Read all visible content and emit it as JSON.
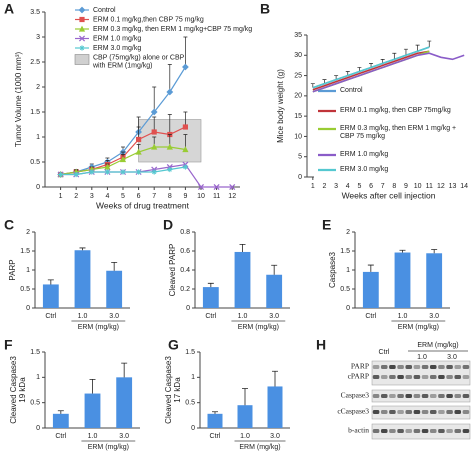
{
  "chart_data": [
    {
      "type": "line",
      "label": "A",
      "ylabel": "Tumor Volume (1000 mm³)",
      "xlabel": "Weeks of drug treatment",
      "x": [
        1,
        2,
        3,
        4,
        5,
        6,
        7,
        8,
        9,
        10,
        11,
        12
      ],
      "xlim": [
        0,
        12.5
      ],
      "xticks": [
        1,
        2,
        3,
        4,
        5,
        6,
        7,
        8,
        9,
        10,
        11,
        12
      ],
      "ylim": [
        0,
        3.5
      ],
      "yticks": [
        0,
        0.5,
        1,
        1.5,
        2,
        2.5,
        3,
        3.5
      ],
      "series": [
        {
          "name": "Control",
          "color": "#5b9bd5",
          "marker": "diamond",
          "values": [
            0.25,
            0.3,
            0.4,
            0.5,
            0.7,
            1.1,
            1.5,
            1.9,
            2.4,
            null,
            null,
            null
          ],
          "errors": [
            0.03,
            0.05,
            0.06,
            0.08,
            0.1,
            0.3,
            0.5,
            0.55,
            0.6,
            null,
            null,
            null
          ]
        },
        {
          "name": "ERM 0.1 mg/kg,then CBP 75 mg/kg",
          "color": "#e0504f",
          "marker": "square",
          "values": [
            0.25,
            0.3,
            0.35,
            0.45,
            0.6,
            0.95,
            1.1,
            1.05,
            1.2,
            null,
            null,
            null
          ],
          "errors": [
            0.03,
            0.04,
            0.05,
            0.08,
            0.1,
            0.25,
            0.3,
            0.4,
            0.3,
            null,
            null,
            null
          ]
        },
        {
          "name": "ERM 0.3 mg/kg, then ERM 1 mg/kg+CBP 75 mg/kg",
          "color": "#99cc33",
          "marker": "triangle",
          "values": [
            0.25,
            0.3,
            0.35,
            0.4,
            0.55,
            0.7,
            0.8,
            0.8,
            0.75,
            null,
            null,
            null
          ],
          "errors": [
            0.03,
            0.04,
            0.05,
            0.06,
            0.1,
            0.15,
            0.2,
            0.25,
            0.3,
            null,
            null,
            null
          ]
        },
        {
          "name": "ERM 1.0 mg/kg",
          "color": "#9966cc",
          "marker": "x",
          "values": [
            0.25,
            0.25,
            0.3,
            0.3,
            0.3,
            0.3,
            0.35,
            0.4,
            0.45,
            0,
            0,
            0
          ]
        },
        {
          "name": "ERM 3.0 mg/kg",
          "color": "#55c8d0",
          "marker": "star",
          "values": [
            0.25,
            0.25,
            0.3,
            0.3,
            0.3,
            0.3,
            0.3,
            0.35,
            0.4,
            null,
            null,
            null
          ]
        }
      ],
      "shaded": {
        "label": [
          "CBP (75mg/kg) alone or CBP",
          "with ERM (1mg/kg)"
        ],
        "color": "#d0d0d0",
        "x": [
          6,
          10
        ],
        "y": [
          0.5,
          1.35
        ]
      }
    },
    {
      "type": "line",
      "label": "B",
      "ylabel": "Mice body weight (g)",
      "xlabel": "Weeks after cell injection",
      "x": [
        1,
        2,
        3,
        4,
        5,
        6,
        7,
        8,
        9,
        10,
        11,
        12,
        13,
        14
      ],
      "xlim": [
        0.5,
        14.5
      ],
      "xticks": [
        1,
        2,
        3,
        4,
        5,
        6,
        7,
        8,
        9,
        10,
        11,
        12,
        13,
        14
      ],
      "ylim": [
        0,
        35
      ],
      "yticks": [
        0,
        5,
        10,
        15,
        20,
        25,
        30,
        35
      ],
      "series": [
        {
          "name": "Control",
          "color": "#5b9bd5",
          "values": [
            22,
            23,
            24,
            25,
            26,
            27,
            28,
            29,
            30,
            31,
            32,
            null,
            null,
            null
          ],
          "errors": [
            1,
            1,
            1,
            1,
            1,
            1,
            1,
            1.5,
            1.5,
            1.5,
            1.5,
            null,
            null,
            null
          ]
        },
        {
          "name": "ERM 0.1 mg/kg, then CBP 75mg/kg",
          "color": "#c0343a",
          "values": [
            21.5,
            22.5,
            23.5,
            24.5,
            25.5,
            26.5,
            27.5,
            28.5,
            29.5,
            30.5,
            31,
            null,
            null,
            null
          ]
        },
        {
          "name": "ERM 0.3 mg/kg, then ERM 1 mg/kg + CBP 75 mg/kg",
          "color": "#99cc33",
          "values": [
            21,
            22,
            23,
            24,
            25,
            26,
            27,
            28,
            29,
            30,
            31,
            null,
            null,
            null
          ]
        },
        {
          "name": "ERM 1.0 mg/kg",
          "color": "#8a5cc8",
          "values": [
            21,
            22,
            23,
            24,
            25,
            26,
            27,
            28,
            29,
            30,
            30.5,
            29.5,
            29,
            30
          ]
        },
        {
          "name": "ERM 3.0 mg/kg",
          "color": "#55c8d0",
          "values": [
            22,
            23,
            24,
            25,
            26,
            27,
            28,
            29,
            30,
            31,
            32,
            null,
            null,
            null
          ]
        }
      ]
    },
    {
      "type": "bar",
      "label": "C",
      "ylabel": "PARP",
      "xlabel": "ERM (mg/kg)",
      "categories": [
        "Ctrl",
        "1.0",
        "3.0"
      ],
      "values": [
        0.62,
        1.52,
        0.98
      ],
      "errors": [
        0.12,
        0.06,
        0.22
      ],
      "color": "#4a90e2",
      "ylim": [
        0,
        2
      ],
      "yticks": [
        0,
        0.5,
        1,
        1.5,
        2
      ]
    },
    {
      "type": "bar",
      "label": "D",
      "ylabel": "Cleaved PARP",
      "xlabel": "ERM (mg/kg)",
      "categories": [
        "Ctrl",
        "1.0",
        "3.0"
      ],
      "values": [
        0.22,
        0.59,
        0.35
      ],
      "errors": [
        0.04,
        0.08,
        0.1
      ],
      "color": "#4a90e2",
      "ylim": [
        0,
        0.8
      ],
      "yticks": [
        0,
        0.2,
        0.4,
        0.6,
        0.8
      ]
    },
    {
      "type": "bar",
      "label": "E",
      "ylabel": "Caspase3",
      "xlabel": "ERM (mg/kg)",
      "categories": [
        "Ctrl",
        "1.0",
        "3.0"
      ],
      "values": [
        0.95,
        1.46,
        1.44
      ],
      "errors": [
        0.18,
        0.06,
        0.1
      ],
      "color": "#4a90e2",
      "ylim": [
        0,
        2
      ],
      "yticks": [
        0,
        0.5,
        1,
        1.5,
        2
      ]
    },
    {
      "type": "bar",
      "label": "F",
      "ylabel": [
        "Cleaved Caspase3",
        "19 kDa"
      ],
      "xlabel": "ERM (mg/kg)",
      "categories": [
        "Ctrl",
        "1.0",
        "3.0"
      ],
      "values": [
        0.28,
        0.68,
        1.0
      ],
      "errors": [
        0.06,
        0.28,
        0.28
      ],
      "color": "#4a90e2",
      "ylim": [
        0,
        1.5
      ],
      "yticks": [
        0,
        0.5,
        1,
        1.5
      ]
    },
    {
      "type": "bar",
      "label": "G",
      "ylabel": [
        "Cleaved Caspase3",
        "17 kDa"
      ],
      "xlabel": "ERM (mg/kg)",
      "categories": [
        "Ctrl",
        "1.0",
        "3.0"
      ],
      "values": [
        0.28,
        0.45,
        0.82
      ],
      "errors": [
        0.04,
        0.33,
        0.3
      ],
      "color": "#4a90e2",
      "ylim": [
        0,
        1.5
      ],
      "yticks": [
        0,
        0.5,
        1,
        1.5
      ]
    },
    {
      "type": "blot",
      "label": "H",
      "lanes": [
        "Ctrl",
        "1.0",
        "3.0"
      ],
      "xlabel": "ERM (mg/kg)",
      "rows": [
        "PARP",
        "cPARP",
        "Caspase3",
        "cCaspase3",
        "b-actin"
      ]
    }
  ]
}
